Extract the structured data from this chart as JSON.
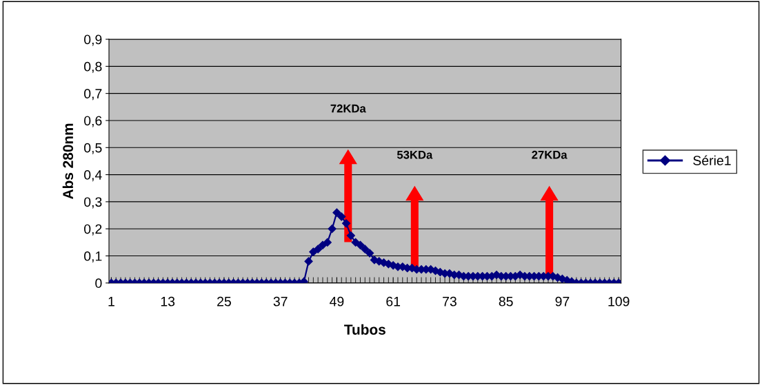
{
  "chart_data": {
    "type": "line",
    "xlabel": "Tubos",
    "ylabel": "Abs 280nm",
    "x": [
      1,
      2,
      3,
      4,
      5,
      6,
      7,
      8,
      9,
      10,
      11,
      12,
      13,
      14,
      15,
      16,
      17,
      18,
      19,
      20,
      21,
      22,
      23,
      24,
      25,
      26,
      27,
      28,
      29,
      30,
      31,
      32,
      33,
      34,
      35,
      36,
      37,
      38,
      39,
      40,
      41,
      42,
      43,
      44,
      45,
      46,
      47,
      48,
      49,
      50,
      51,
      52,
      53,
      54,
      55,
      56,
      57,
      58,
      59,
      60,
      61,
      62,
      63,
      64,
      65,
      66,
      67,
      68,
      69,
      70,
      71,
      72,
      73,
      74,
      75,
      76,
      77,
      78,
      79,
      80,
      81,
      82,
      83,
      84,
      85,
      86,
      87,
      88,
      89,
      90,
      91,
      92,
      93,
      94,
      95,
      96,
      97,
      98,
      99,
      100,
      101,
      102,
      103,
      104,
      105,
      106,
      107,
      108,
      109
    ],
    "series": [
      {
        "name": "Série1",
        "color": "#000080",
        "values": [
          0,
          0,
          0,
          0,
          0,
          0,
          0,
          0,
          0,
          0,
          0,
          0,
          0,
          0,
          0,
          0,
          0,
          0,
          0,
          0,
          0,
          0,
          0,
          0,
          0,
          0,
          0,
          0,
          0,
          0,
          0,
          0,
          0,
          0,
          0,
          0,
          0,
          0,
          0,
          0,
          0,
          0.005,
          0.08,
          0.115,
          0.125,
          0.14,
          0.15,
          0.2,
          0.26,
          0.245,
          0.22,
          0.175,
          0.15,
          0.14,
          0.125,
          0.11,
          0.085,
          0.08,
          0.075,
          0.07,
          0.065,
          0.06,
          0.06,
          0.055,
          0.055,
          0.05,
          0.05,
          0.05,
          0.05,
          0.045,
          0.04,
          0.035,
          0.035,
          0.03,
          0.03,
          0.025,
          0.025,
          0.025,
          0.025,
          0.025,
          0.025,
          0.025,
          0.03,
          0.025,
          0.025,
          0.025,
          0.025,
          0.03,
          0.025,
          0.025,
          0.025,
          0.025,
          0.025,
          0.025,
          0.025,
          0.02,
          0.015,
          0.01,
          0.005,
          0,
          0,
          0,
          0,
          0,
          0,
          0,
          0,
          0,
          0
        ]
      }
    ],
    "xlim": [
      0.5,
      109.5
    ],
    "xticks": [
      1,
      13,
      25,
      37,
      49,
      61,
      73,
      85,
      97,
      109
    ],
    "ylim": [
      0,
      0.9
    ],
    "yticks": [
      0,
      {
        "value": 0.1,
        "label": "0,1"
      },
      {
        "value": 0.2,
        "label": "0,2"
      },
      {
        "value": 0.3,
        "label": "0,3"
      },
      {
        "value": 0.4,
        "label": "0,4"
      },
      {
        "value": 0.5,
        "label": "0,5"
      },
      {
        "value": 0.6,
        "label": "0,6"
      },
      {
        "value": 0.7,
        "label": "0,7"
      },
      {
        "value": 0.8,
        "label": "0,8"
      },
      {
        "value": 0.9,
        "label": "0,9"
      }
    ],
    "grid": "y",
    "legend": "right",
    "marker": "diamond",
    "line_style": "solid",
    "annotations": [
      "72KDa",
      "53KDa",
      "27KDa"
    ]
  }
}
